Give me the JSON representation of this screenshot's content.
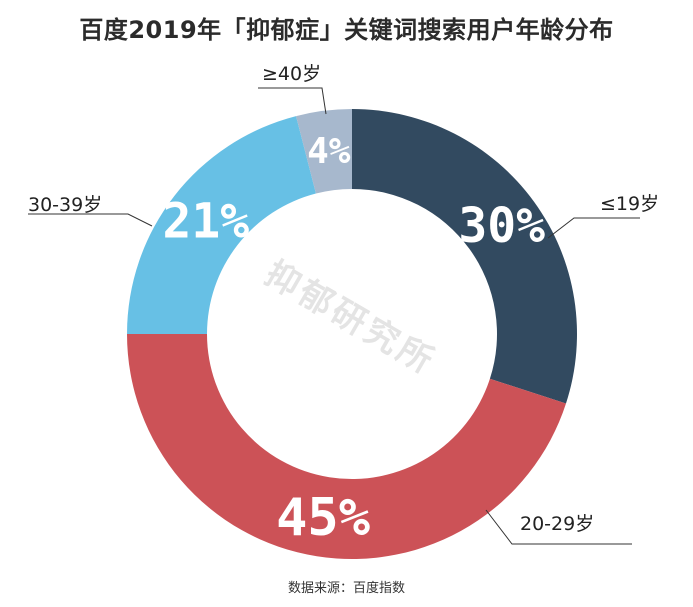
{
  "title": "百度2019年「抑郁症」关键词搜索用户年龄分布",
  "source": "数据来源：百度指数",
  "watermark": "抑郁研究所",
  "chart_data": {
    "type": "pie",
    "title": "百度2019年「抑郁症」关键词搜索用户年龄分布",
    "donut": true,
    "slices": [
      {
        "label": "≤19岁",
        "value": 30,
        "pct_label": "30%",
        "color": "#324a60"
      },
      {
        "label": "20-29岁",
        "value": 45,
        "pct_label": "45%",
        "color": "#cc5257"
      },
      {
        "label": "30-39岁",
        "value": 21,
        "pct_label": "21%",
        "color": "#67c0e5"
      },
      {
        "label": "≥40岁",
        "value": 4,
        "pct_label": "4%",
        "color": "#a7b8cd"
      }
    ]
  }
}
